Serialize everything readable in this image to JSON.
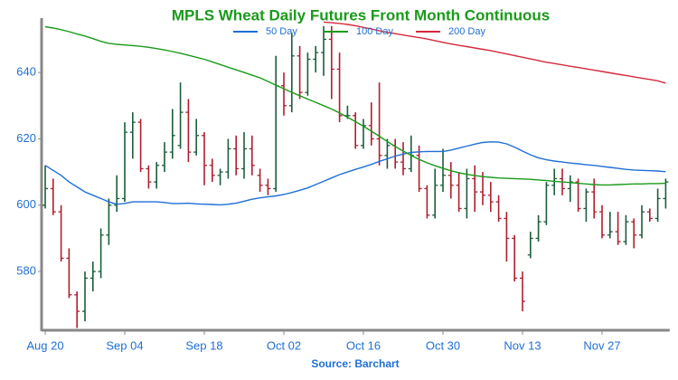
{
  "chart_data": {
    "type": "ohlc",
    "title": "MPLS Wheat Daily Futures Front Month Continuous",
    "source": "Source: Barchart",
    "categories": [
      "Aug 20",
      null,
      null,
      null,
      null,
      null,
      null,
      null,
      null,
      null,
      "Sep 04",
      null,
      null,
      null,
      null,
      null,
      null,
      null,
      null,
      null,
      "Sep 18",
      null,
      null,
      null,
      null,
      null,
      null,
      null,
      null,
      null,
      "Oct 02",
      null,
      null,
      null,
      null,
      null,
      null,
      null,
      null,
      null,
      "Oct 16",
      null,
      null,
      null,
      null,
      null,
      null,
      null,
      null,
      null,
      "Oct 30",
      null,
      null,
      null,
      null,
      null,
      null,
      null,
      null,
      null,
      "Nov 13",
      null,
      null,
      null,
      null,
      null,
      null,
      null,
      null,
      null,
      "Nov 27",
      null,
      null,
      null,
      null,
      null,
      null,
      null,
      null
    ],
    "open": [
      600,
      605,
      598,
      584,
      573,
      568,
      578,
      580,
      591,
      600,
      602,
      622,
      625,
      611,
      607,
      612,
      616,
      618,
      628,
      616,
      621,
      612,
      609,
      610,
      617,
      611,
      617,
      609,
      606,
      605,
      636,
      630,
      645,
      634,
      644,
      646,
      650,
      641,
      627,
      627,
      618,
      624,
      620,
      615,
      618,
      613,
      611,
      615,
      605,
      597,
      606,
      609,
      606,
      599,
      608,
      604,
      603,
      601,
      596,
      590,
      578,
      585,
      590,
      595,
      606,
      608,
      605,
      607,
      599,
      604,
      598,
      591,
      592,
      589,
      595,
      591,
      598,
      596,
      602
    ],
    "high": [
      612,
      608,
      600,
      587,
      574,
      580,
      583,
      593,
      602,
      609,
      625,
      628,
      626,
      612,
      613,
      619,
      629,
      637,
      632,
      626,
      622,
      614,
      611,
      620,
      621,
      622,
      621,
      611,
      608,
      645,
      640,
      652,
      648,
      646,
      648,
      654,
      654,
      646,
      630,
      628,
      626,
      631,
      637,
      620,
      620,
      619,
      621,
      618,
      606,
      611,
      617,
      613,
      610,
      611,
      612,
      610,
      607,
      603,
      598,
      591,
      580,
      592,
      597,
      607,
      611,
      611,
      609,
      608,
      605,
      608,
      600,
      598,
      598,
      597,
      596,
      600,
      599,
      605,
      608
    ],
    "low": [
      599,
      597,
      583,
      572,
      563,
      565,
      574,
      578,
      588,
      598,
      601,
      614,
      610,
      605,
      605,
      610,
      614,
      617,
      613,
      615,
      606,
      607,
      606,
      608,
      609,
      608,
      609,
      604,
      603,
      604,
      627,
      628,
      632,
      633,
      640,
      639,
      632,
      625,
      626,
      617,
      617,
      618,
      612,
      611,
      611,
      609,
      610,
      604,
      596,
      596,
      604,
      602,
      598,
      596,
      598,
      600,
      598,
      595,
      583,
      577,
      568,
      584,
      589,
      594,
      603,
      603,
      601,
      598,
      595,
      596,
      590,
      590,
      588,
      588,
      587,
      590,
      595,
      595,
      599
    ],
    "close": [
      605,
      598,
      584,
      573,
      568,
      578,
      580,
      591,
      600,
      602,
      622,
      625,
      611,
      607,
      612,
      616,
      621,
      628,
      616,
      621,
      612,
      609,
      610,
      617,
      611,
      617,
      612,
      606,
      605,
      636,
      630,
      645,
      634,
      644,
      646,
      650,
      641,
      627,
      627,
      618,
      624,
      620,
      615,
      618,
      613,
      611,
      615,
      605,
      597,
      606,
      609,
      606,
      599,
      608,
      604,
      603,
      601,
      596,
      590,
      578,
      571,
      590,
      595,
      606,
      608,
      605,
      607,
      599,
      604,
      598,
      591,
      592,
      589,
      595,
      591,
      598,
      596,
      602,
      607
    ],
    "up_color": "#1b5e3b",
    "down_color": "#b01e2f",
    "series": [
      {
        "name": "50 Day",
        "color": "#1f6fd6",
        "values": [
          612,
          610.5,
          609,
          607,
          605.5,
          604,
          603,
          602,
          601,
          600.3,
          600.5,
          601,
          601,
          601,
          601,
          600.8,
          600.5,
          600.5,
          600.6,
          600.4,
          600.3,
          600.2,
          600.1,
          600.3,
          600.6,
          601.2,
          601.8,
          602.2,
          602.5,
          602.8,
          603.2,
          603.8,
          604.5,
          605.2,
          606.2,
          607.2,
          608.2,
          609.2,
          610,
          610.8,
          611.5,
          612.3,
          613.2,
          614,
          614.8,
          615.4,
          615.9,
          616.1,
          616.2,
          616.2,
          616.2,
          616.6,
          617.2,
          617.8,
          618.4,
          618.9,
          619.1,
          619,
          618.5,
          617.5,
          616.3,
          615.2,
          614.3,
          613.7,
          613.3,
          613,
          612.7,
          612.5,
          612.2,
          612,
          611.7,
          611.4,
          611.1,
          610.8,
          610.6,
          610.5,
          610.4,
          610.3,
          610.1
        ]
      },
      {
        "name": "100 Day",
        "color": "#1a9a1a",
        "values": [
          653.8,
          653.4,
          652.9,
          652.3,
          651.6,
          651,
          650.2,
          649.4,
          648.8,
          648.5,
          648.3,
          648.1,
          647.9,
          647.6,
          647.2,
          646.8,
          646.3,
          645.8,
          645.2,
          644.6,
          644,
          643.2,
          642.4,
          641.6,
          640.8,
          640,
          639.2,
          638.4,
          637.3,
          636.2,
          635.1,
          634,
          633,
          632,
          631,
          630,
          629,
          627.8,
          626.5,
          625.2,
          623.8,
          622.3,
          620.8,
          619.2,
          617.7,
          616.3,
          615,
          613.8,
          612.8,
          611.9,
          611.1,
          610.4,
          609.8,
          609.3,
          608.9,
          608.6,
          608.4,
          608.2,
          608.1,
          608,
          607.9,
          607.8,
          607.6,
          607.4,
          607.2,
          607,
          606.8,
          606.6,
          606.4,
          606.2,
          606.1,
          606.1,
          606.2,
          606.3,
          606.4,
          606.4,
          606.5,
          606.5,
          606.6
        ]
      },
      {
        "name": "200 Day",
        "color": "#d42a3c",
        "values": [
          null,
          null,
          null,
          null,
          null,
          null,
          null,
          null,
          null,
          null,
          null,
          null,
          null,
          null,
          null,
          null,
          null,
          null,
          null,
          null,
          null,
          null,
          null,
          null,
          null,
          null,
          null,
          null,
          null,
          null,
          null,
          null,
          null,
          null,
          null,
          655.2,
          655,
          654.8,
          654.5,
          654.1,
          653.6,
          653.1,
          652.6,
          652.1,
          651.7,
          651.3,
          650.9,
          650.5,
          650.1,
          649.6,
          649.1,
          648.6,
          648.2,
          647.8,
          647.4,
          647,
          646.6,
          646.1,
          645.6,
          645.1,
          644.6,
          644.1,
          643.6,
          643.1,
          642.7,
          642.3,
          641.9,
          641.5,
          641.1,
          640.7,
          640.3,
          639.9,
          639.5,
          639.1,
          638.7,
          638.3,
          637.9,
          637.5,
          636.8
        ]
      }
    ],
    "ylim": [
      562.3,
      656.4
    ],
    "yticks": [
      580,
      600,
      620,
      640
    ]
  }
}
